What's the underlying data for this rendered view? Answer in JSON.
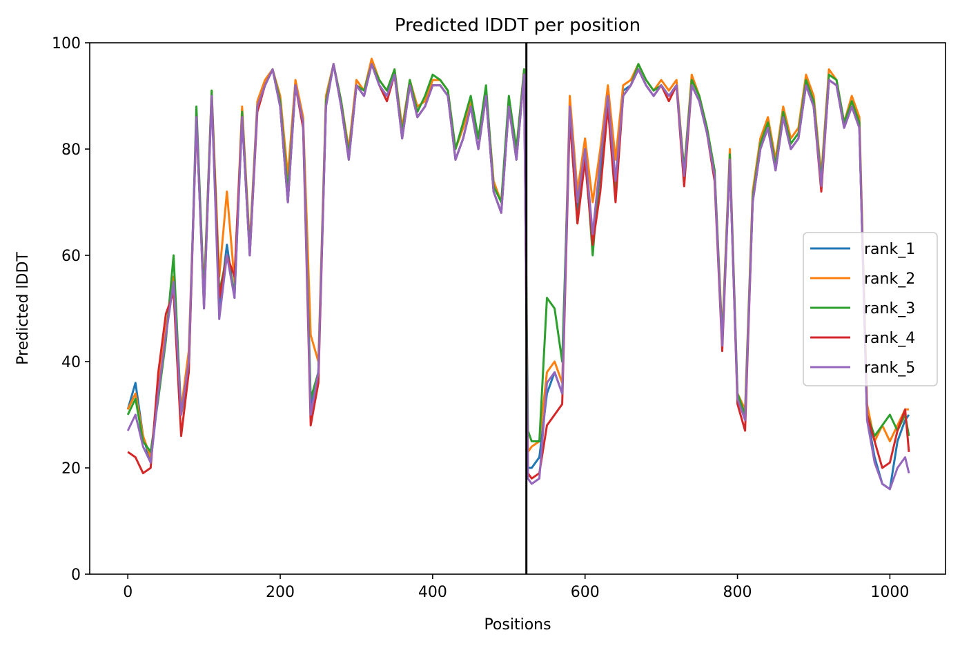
{
  "chart_data": {
    "type": "line",
    "title": "Predicted lDDT per position",
    "xlabel": "Positions",
    "ylabel": "Predicted lDDT",
    "xlim": [
      -50,
      1073
    ],
    "ylim": [
      0,
      100
    ],
    "x_ticks": [
      0,
      200,
      400,
      600,
      800,
      1000
    ],
    "y_ticks": [
      0,
      20,
      40,
      60,
      80,
      100
    ],
    "grid": false,
    "legend_position": "center-right",
    "divider_x": 523,
    "divider_color": "#000000",
    "x": [
      0,
      10,
      20,
      30,
      40,
      50,
      60,
      70,
      80,
      90,
      100,
      110,
      120,
      130,
      140,
      150,
      160,
      170,
      180,
      190,
      200,
      210,
      220,
      230,
      240,
      250,
      260,
      270,
      280,
      290,
      300,
      310,
      320,
      330,
      340,
      350,
      360,
      370,
      380,
      390,
      400,
      410,
      420,
      430,
      440,
      450,
      460,
      470,
      480,
      490,
      500,
      510,
      520,
      525,
      530,
      540,
      550,
      560,
      570,
      580,
      590,
      600,
      610,
      620,
      630,
      640,
      650,
      660,
      670,
      680,
      690,
      700,
      710,
      720,
      730,
      740,
      750,
      760,
      770,
      780,
      790,
      800,
      810,
      820,
      830,
      840,
      850,
      860,
      870,
      880,
      890,
      900,
      910,
      920,
      930,
      940,
      950,
      960,
      970,
      980,
      990,
      1000,
      1010,
      1020,
      1025
    ],
    "series": [
      {
        "name": "rank_1",
        "color": "#1f77b4",
        "values": [
          31,
          36,
          26,
          21,
          34,
          45,
          55,
          30,
          40,
          85,
          52,
          90,
          50,
          62,
          52,
          86,
          60,
          88,
          92,
          95,
          88,
          70,
          92,
          85,
          32,
          38,
          88,
          96,
          88,
          78,
          92,
          90,
          96,
          92,
          90,
          94,
          82,
          92,
          86,
          88,
          92,
          92,
          90,
          78,
          82,
          88,
          80,
          90,
          72,
          68,
          88,
          78,
          94,
          20,
          20,
          22,
          34,
          38,
          34,
          88,
          68,
          78,
          62,
          76,
          90,
          74,
          91,
          92,
          95,
          92,
          90,
          92,
          90,
          92,
          75,
          92,
          89,
          83,
          75,
          44,
          78,
          33,
          30,
          70,
          80,
          84,
          76,
          86,
          80,
          82,
          92,
          88,
          73,
          93,
          92,
          84,
          88,
          84,
          30,
          22,
          17,
          16,
          25,
          29,
          30
        ]
      },
      {
        "name": "rank_2",
        "color": "#ff7f0e",
        "values": [
          31,
          34,
          26,
          22,
          35,
          46,
          56,
          31,
          42,
          85,
          53,
          91,
          56,
          72,
          55,
          88,
          62,
          89,
          93,
          95,
          90,
          75,
          93,
          86,
          45,
          40,
          90,
          96,
          89,
          80,
          93,
          91,
          97,
          93,
          91,
          95,
          84,
          93,
          88,
          89,
          93,
          93,
          91,
          80,
          84,
          89,
          82,
          91,
          74,
          70,
          89,
          80,
          95,
          23,
          24,
          25,
          38,
          40,
          36,
          90,
          72,
          82,
          70,
          80,
          92,
          78,
          92,
          93,
          96,
          93,
          91,
          93,
          91,
          93,
          76,
          94,
          90,
          84,
          76,
          45,
          80,
          34,
          31,
          72,
          82,
          86,
          78,
          88,
          82,
          84,
          94,
          90,
          75,
          95,
          93,
          85,
          90,
          86,
          32,
          25,
          28,
          25,
          28,
          31,
          31
        ]
      },
      {
        "name": "rank_3",
        "color": "#2ca02c",
        "values": [
          30,
          33,
          25,
          23,
          33,
          44,
          60,
          30,
          38,
          88,
          52,
          91,
          53,
          60,
          53,
          87,
          61,
          88,
          92,
          95,
          89,
          72,
          92,
          85,
          33,
          38,
          89,
          96,
          89,
          79,
          92,
          91,
          96,
          93,
          91,
          95,
          83,
          93,
          87,
          90,
          94,
          93,
          91,
          80,
          85,
          90,
          82,
          92,
          73,
          70,
          90,
          80,
          95,
          27,
          25,
          25,
          52,
          50,
          40,
          86,
          66,
          80,
          60,
          78,
          88,
          72,
          90,
          92,
          96,
          93,
          91,
          92,
          90,
          92,
          76,
          93,
          90,
          84,
          76,
          44,
          79,
          34,
          30,
          71,
          81,
          85,
          77,
          87,
          81,
          83,
          93,
          89,
          74,
          94,
          93,
          85,
          89,
          85,
          30,
          26,
          28,
          30,
          27,
          30,
          26
        ]
      },
      {
        "name": "rank_4",
        "color": "#d62728",
        "values": [
          23,
          22,
          19,
          20,
          38,
          49,
          53,
          26,
          38,
          86,
          50,
          90,
          52,
          60,
          56,
          86,
          60,
          87,
          92,
          95,
          88,
          70,
          92,
          84,
          28,
          36,
          88,
          96,
          88,
          78,
          92,
          90,
          96,
          92,
          89,
          94,
          82,
          92,
          86,
          88,
          92,
          92,
          90,
          78,
          82,
          88,
          80,
          90,
          72,
          68,
          88,
          78,
          94,
          19,
          18,
          19,
          28,
          30,
          32,
          86,
          66,
          78,
          62,
          72,
          88,
          70,
          90,
          92,
          95,
          92,
          90,
          92,
          89,
          92,
          73,
          92,
          89,
          83,
          74,
          42,
          78,
          32,
          27,
          70,
          80,
          84,
          76,
          86,
          80,
          82,
          92,
          88,
          72,
          93,
          92,
          84,
          88,
          84,
          30,
          25,
          20,
          21,
          27,
          31,
          23
        ]
      },
      {
        "name": "rank_5",
        "color": "#9467bd",
        "values": [
          27,
          30,
          24,
          21,
          34,
          45,
          55,
          30,
          40,
          86,
          50,
          90,
          48,
          60,
          52,
          86,
          60,
          88,
          92,
          95,
          88,
          70,
          92,
          85,
          30,
          38,
          88,
          96,
          88,
          78,
          92,
          90,
          96,
          92,
          90,
          94,
          82,
          92,
          86,
          88,
          92,
          92,
          90,
          78,
          82,
          88,
          80,
          90,
          72,
          68,
          88,
          78,
          94,
          18,
          17,
          18,
          36,
          38,
          34,
          88,
          70,
          80,
          64,
          78,
          90,
          74,
          90,
          92,
          95,
          92,
          90,
          92,
          90,
          92,
          75,
          92,
          89,
          83,
          75,
          43,
          78,
          33,
          29,
          70,
          80,
          84,
          76,
          86,
          80,
          82,
          92,
          88,
          73,
          93,
          92,
          84,
          88,
          84,
          29,
          21,
          17,
          16,
          20,
          22,
          19
        ]
      }
    ]
  }
}
